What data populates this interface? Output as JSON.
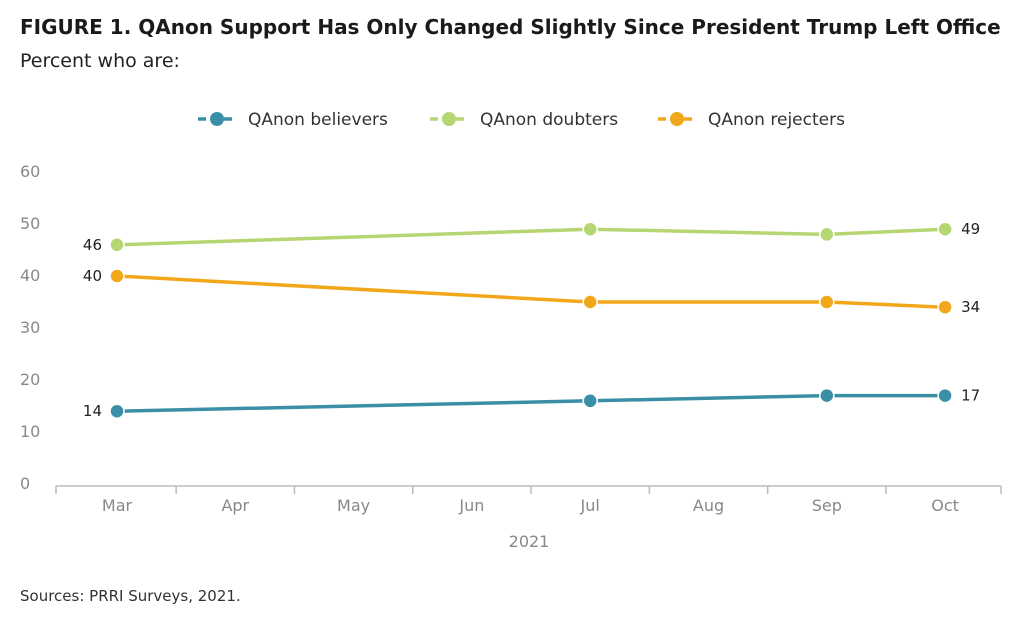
{
  "title": "FIGURE 1. QAnon Support Has Only Changed Slightly Since President Trump Left Office",
  "subtitle": "Percent who are:",
  "source": "Sources: PRRI Surveys, 2021.",
  "chart_data": {
    "type": "line",
    "categories": [
      "Mar",
      "Apr",
      "May",
      "Jun",
      "Jul",
      "Aug",
      "Sep",
      "Oct"
    ],
    "xlabel": "2021",
    "ylim": [
      0,
      60
    ],
    "yticks": [
      0,
      10,
      20,
      30,
      40,
      50,
      60
    ],
    "legend_position": "top",
    "series": [
      {
        "name": "QAnon believers",
        "color": "#3a8fa6",
        "points": [
          {
            "x": "Mar",
            "y": 14
          },
          {
            "x": "Jul",
            "y": 16
          },
          {
            "x": "Sep",
            "y": 17
          },
          {
            "x": "Oct",
            "y": 17
          }
        ]
      },
      {
        "name": "QAnon doubters",
        "color": "#b5d672",
        "points": [
          {
            "x": "Mar",
            "y": 46
          },
          {
            "x": "Jul",
            "y": 49
          },
          {
            "x": "Sep",
            "y": 48
          },
          {
            "x": "Oct",
            "y": 49
          }
        ]
      },
      {
        "name": "QAnon rejecters",
        "color": "#f2a71b",
        "points": [
          {
            "x": "Mar",
            "y": 40
          },
          {
            "x": "Jul",
            "y": 35
          },
          {
            "x": "Sep",
            "y": 35
          },
          {
            "x": "Oct",
            "y": 34
          }
        ]
      }
    ],
    "data_labels": [
      {
        "series": 1,
        "x": "Mar",
        "text": "46"
      },
      {
        "series": 2,
        "x": "Mar",
        "text": "40"
      },
      {
        "series": 0,
        "x": "Mar",
        "text": "14"
      },
      {
        "series": 1,
        "x": "Oct",
        "text": "49"
      },
      {
        "series": 2,
        "x": "Oct",
        "text": "34"
      },
      {
        "series": 0,
        "x": "Oct",
        "text": "17"
      }
    ]
  }
}
